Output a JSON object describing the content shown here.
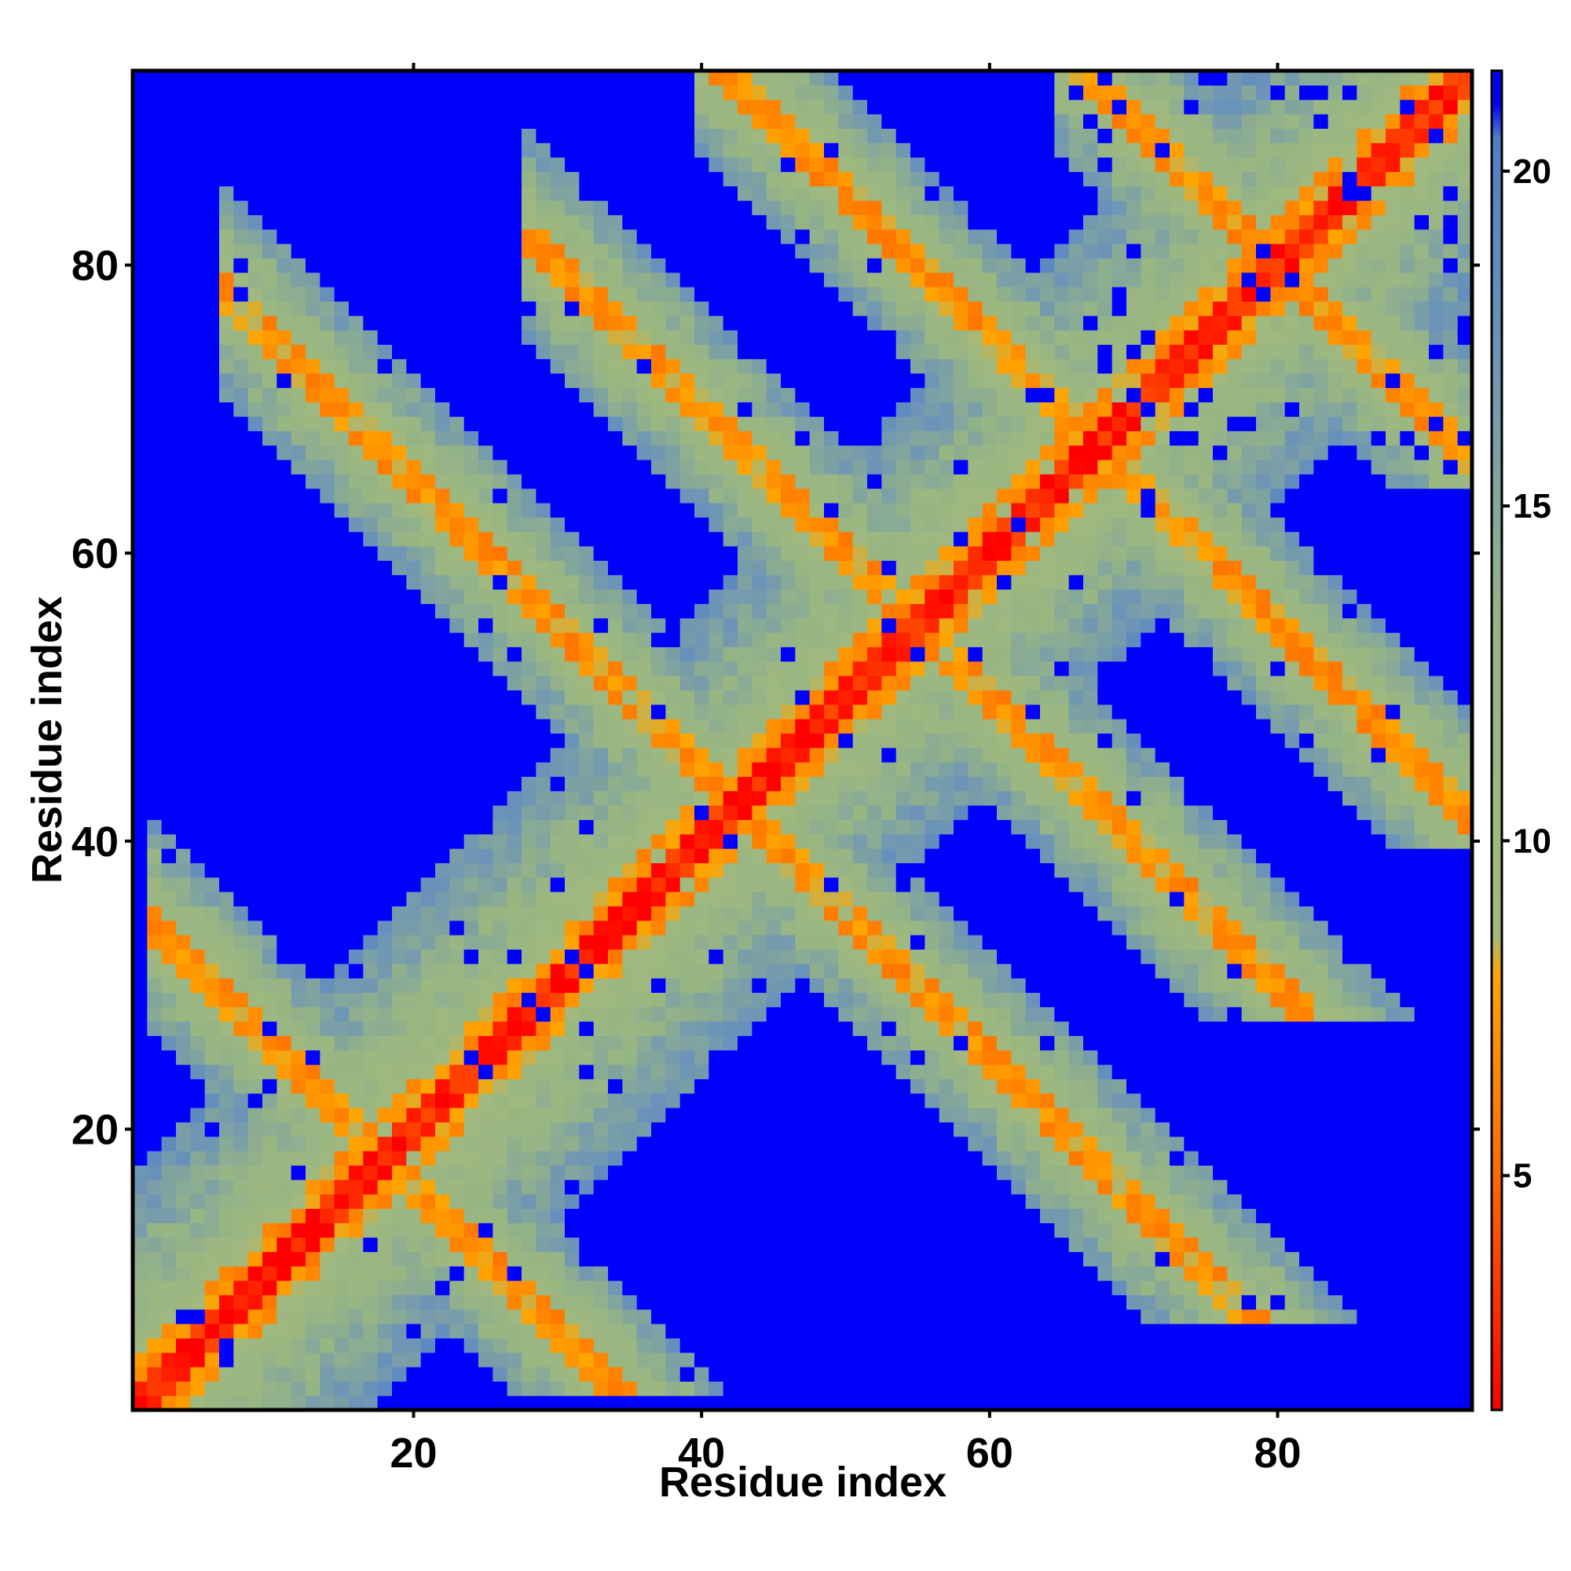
{
  "chart_data": {
    "type": "heatmap",
    "title": "",
    "xlabel": "Residue index",
    "ylabel": "Residue index",
    "xlim": [
      0.5,
      93.5
    ],
    "ylim": [
      0.5,
      93.5
    ],
    "n_residues": 93,
    "x_ticks": [
      20,
      40,
      60,
      80
    ],
    "y_ticks": [
      20,
      40,
      60,
      80
    ],
    "x_tick_labels": [
      "20",
      "40",
      "60",
      "80"
    ],
    "y_tick_labels": [
      "20",
      "40",
      "60",
      "80"
    ],
    "colorbar": {
      "range": [
        1.5,
        21.5
      ],
      "ticks": [
        5,
        10,
        15,
        20
      ],
      "tick_labels": [
        "5",
        "10",
        "15",
        "20"
      ],
      "stops": [
        {
          "value": 1.5,
          "color": "#ff0000"
        },
        {
          "value": 5.0,
          "color": "#ff6a00"
        },
        {
          "value": 8.0,
          "color": "#ffa500"
        },
        {
          "value": 8.6,
          "color": "#a2b97e"
        },
        {
          "value": 13.0,
          "color": "#98b683"
        },
        {
          "value": 17.5,
          "color": "#6b93b9"
        },
        {
          "value": 20.5,
          "color": "#4f80c6"
        },
        {
          "value": 21.0,
          "color": "#0000ff"
        }
      ]
    },
    "structure": {
      "diagonal_width": 2.0,
      "band_half_width": 7.5,
      "cross_contacts": [
        {
          "axis_sum": 36,
          "range": [
            4,
            32
          ],
          "note": "antidiagonal strand pairing near i+j=36"
        },
        {
          "axis_sum": 85,
          "range": [
            9,
            76
          ],
          "note": "antidiagonal near i+j=85"
        },
        {
          "axis_sum": 110,
          "range": [
            30,
            80
          ],
          "note": "antidiagonal near i+j=110"
        },
        {
          "axis_sum": 135,
          "range": [
            42,
            93
          ],
          "note": "antidiagonal near i+j=135"
        },
        {
          "axis_sum": 160,
          "range": [
            67,
            93
          ],
          "note": "antidiagonal near i+j=160"
        }
      ]
    },
    "legend": "none",
    "grid": false
  }
}
